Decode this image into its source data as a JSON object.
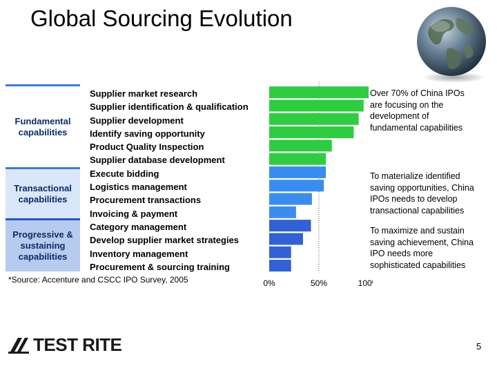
{
  "title": "Global Sourcing Evolution",
  "categories": [
    {
      "line1": "Fundamental",
      "line2": "capabilities",
      "line3": ""
    },
    {
      "line1": "Transactional",
      "line2": "capabilities",
      "line3": ""
    },
    {
      "line1": "Progressive &",
      "line2": "sustaining",
      "line3": "capabilities"
    }
  ],
  "notes": [
    {
      "lines": [
        "Over 70% of China IPOs",
        "are focusing on the",
        "development of",
        "fundamental capabilities"
      ]
    },
    {
      "lines": [
        "To materialize identified",
        "saving opportunities, China",
        "IPOs needs to develop",
        "transactional capabilities"
      ]
    },
    {
      "lines": [
        "To maximize and sustain",
        "saving achievement, China",
        "IPO needs more",
        "sophisticated capabilities"
      ]
    }
  ],
  "source": "*Source: Accenture and CSCC IPO Survey, 2005",
  "logo": {
    "text": "TEST RITE",
    "icon": "test-rite-logo-mark-icon"
  },
  "page_number": "5",
  "colors": {
    "bar_green": "#2ecc40",
    "bar_blue": "#3a8df0",
    "bar_dark_blue": "#3161d6",
    "grid": "#555555"
  },
  "chart_data": {
    "type": "bar",
    "orientation": "horizontal",
    "categories": [
      "Supplier market research",
      "Supplier identification & qualification",
      "Supplier development",
      "Identify saving opportunity",
      "Product Quality Inspection",
      "Supplier database development",
      "Execute bidding",
      "Logistics management",
      "Procurement transactions",
      "Invoicing & payment",
      "Category management",
      "Develop supplier market strategies",
      "Inventory management",
      "Procurement & sourcing training"
    ],
    "values": [
      100,
      95,
      90,
      85,
      63,
      57,
      57,
      55,
      43,
      27,
      42,
      34,
      22,
      22
    ],
    "groups": [
      "fundamental",
      "fundamental",
      "fundamental",
      "fundamental",
      "fundamental",
      "fundamental",
      "transactional",
      "transactional",
      "transactional",
      "transactional",
      "progressive",
      "progressive",
      "progressive",
      "progressive"
    ],
    "xlim": [
      0,
      100
    ],
    "x_ticks": [
      "0%",
      "50%",
      "100%"
    ],
    "grid": true
  }
}
